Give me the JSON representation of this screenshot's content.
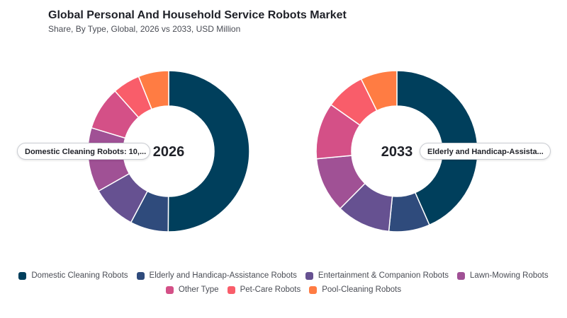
{
  "title": "Global Personal And Household Service Robots Market",
  "subtitle": "Share, By Type, Global, 2026 vs 2033, USD Million",
  "tooltips": [
    {
      "text": "Domestic Cleaning Robots: 10,..."
    },
    {
      "text": "Elderly and Handicap-Assista..."
    }
  ],
  "colors": {
    "Domestic Cleaning Robots": "#003f5c",
    "Elderly and Handicap-Assistance Robots": "#2f4b7c",
    "Entertainment & Companion Robots": "#665191",
    "Lawn-Mowing Robots": "#a05195",
    "Other Type": "#d45087",
    "Pet-Care Robots": "#f95d6a",
    "Pool-Cleaning Robots": "#ff7c43"
  },
  "chart_data": [
    {
      "type": "pie",
      "center_label": "2026",
      "categories": [
        "Domestic Cleaning Robots",
        "Elderly and Handicap-Assistance Robots",
        "Entertainment & Companion Robots",
        "Lawn-Mowing Robots",
        "Other Type",
        "Pet-Care Robots",
        "Pool-Cleaning Robots"
      ],
      "values": [
        51.1,
        7.8,
        9.2,
        13.2,
        8.9,
        5.6,
        6.2
      ]
    },
    {
      "type": "pie",
      "center_label": "2033",
      "categories": [
        "Domestic Cleaning Robots",
        "Elderly and Handicap-Assistance Robots",
        "Entertainment & Companion Robots",
        "Lawn-Mowing Robots",
        "Other Type",
        "Pet-Care Robots",
        "Pool-Cleaning Robots"
      ],
      "values": [
        43.4,
        8.2,
        10.8,
        11.1,
        11.3,
        7.9,
        7.3
      ]
    }
  ],
  "legend": {
    "rows": [
      [
        "Domestic Cleaning Robots",
        "Elderly and Handicap-Assistance Robots",
        "Entertainment & Companion Robots",
        "Lawn-Mowing Robots"
      ],
      [
        "Other Type",
        "Pet-Care Robots",
        "Pool-Cleaning Robots"
      ]
    ]
  }
}
